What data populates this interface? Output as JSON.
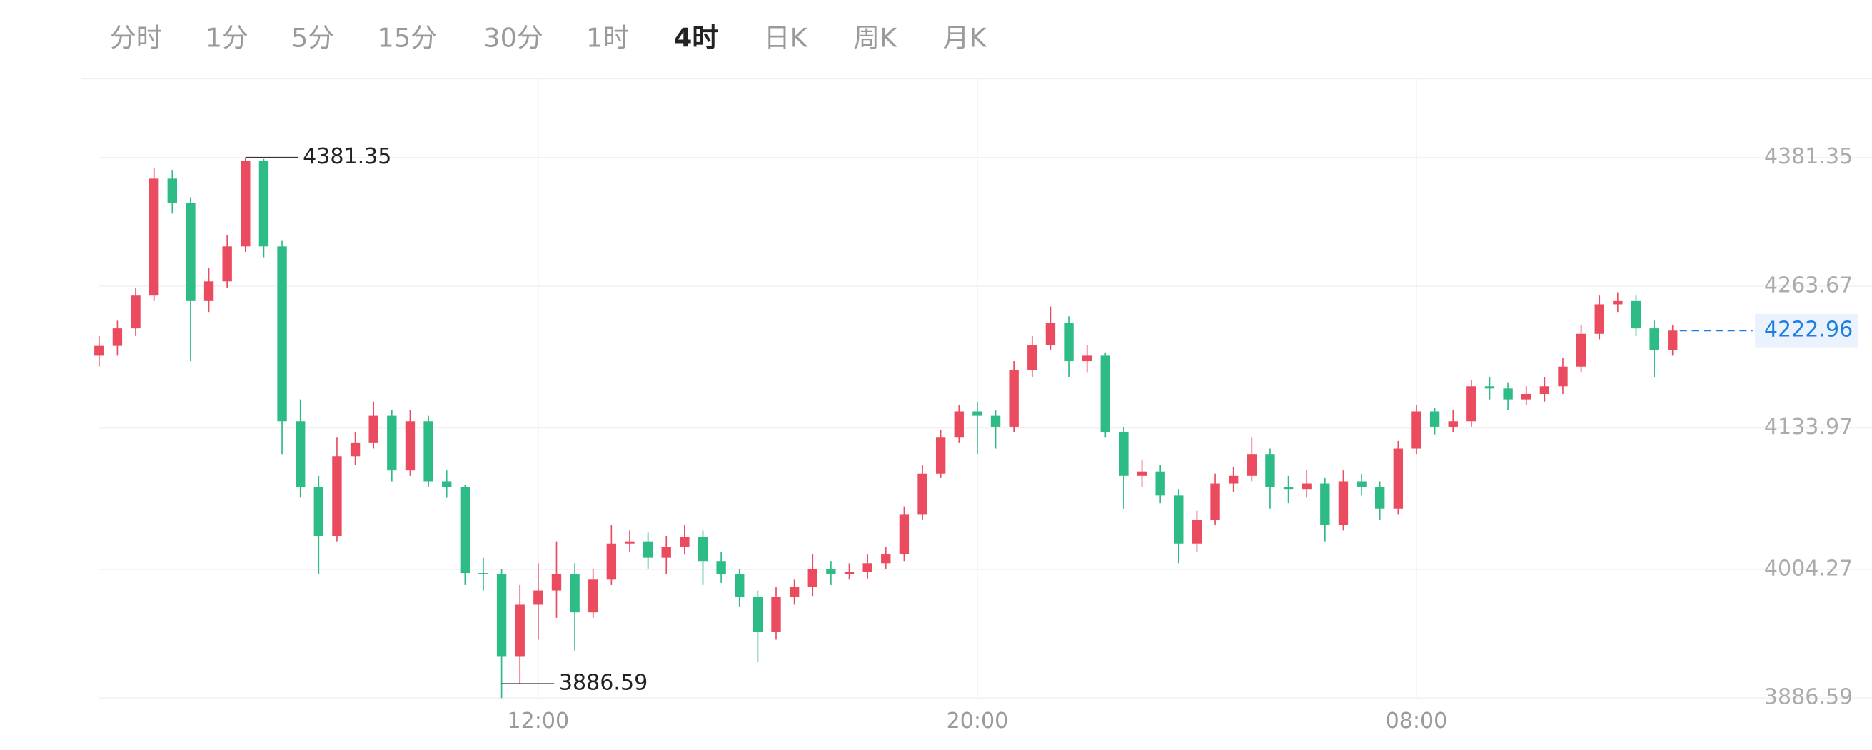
{
  "tabs": [
    {
      "label": "分时",
      "active": false
    },
    {
      "label": "1分",
      "active": false
    },
    {
      "label": "5分",
      "active": false
    },
    {
      "label": "15分",
      "active": false
    },
    {
      "label": "30分",
      "active": false
    },
    {
      "label": "1时",
      "active": false
    },
    {
      "label": "4时",
      "active": true
    },
    {
      "label": "日K",
      "active": false
    },
    {
      "label": "周K",
      "active": false
    },
    {
      "label": "月K",
      "active": false
    }
  ],
  "chart_data": {
    "type": "candlestick",
    "open": [
      4200,
      4209,
      4225,
      4255,
      4362,
      4340,
      4250,
      4268,
      4300,
      4378,
      4300,
      4140,
      4080,
      4035,
      4108,
      4120,
      4145,
      4095,
      4140,
      4085,
      4080,
      4001,
      4000,
      3925,
      3972,
      3985,
      4000,
      3965,
      3995,
      4028,
      4030,
      4015,
      4025,
      4034,
      4012,
      4000,
      3979,
      3947,
      3979,
      3988,
      4005,
      4000,
      4002,
      4010,
      4018,
      4055,
      4092,
      4125,
      4149,
      4145,
      4135,
      4187,
      4210,
      4230,
      4195,
      4200,
      4130,
      4090,
      4094,
      4072,
      4028,
      4050,
      4083,
      4090,
      4110,
      4080,
      4078,
      4083,
      4045,
      4085,
      4080,
      4060,
      4115,
      4149,
      4135,
      4140,
      4172,
      4170,
      4160,
      4165,
      4172,
      4190,
      4220,
      4247,
      4250,
      4225,
      4205
    ],
    "high": [
      4218,
      4232,
      4262,
      4372,
      4370,
      4345,
      4280,
      4310,
      4381.35,
      4380,
      4305,
      4160,
      4090,
      4125,
      4130,
      4158,
      4150,
      4150,
      4145,
      4095,
      4082,
      4015,
      4005,
      3990,
      4010,
      4030,
      4010,
      4005,
      4045,
      4040,
      4038,
      4035,
      4045,
      4040,
      4020,
      4005,
      3985,
      3988,
      3995,
      4018,
      4012,
      4010,
      4018,
      4025,
      4062,
      4100,
      4132,
      4155,
      4158,
      4150,
      4195,
      4218,
      4245,
      4236,
      4210,
      4203,
      4135,
      4105,
      4100,
      4078,
      4058,
      4092,
      4098,
      4125,
      4115,
      4090,
      4095,
      4088,
      4095,
      4092,
      4085,
      4122,
      4155,
      4152,
      4150,
      4178,
      4180,
      4175,
      4172,
      4180,
      4198,
      4228,
      4255,
      4258,
      4255,
      4232,
      4228
    ],
    "low": [
      4190,
      4200,
      4218,
      4250,
      4330,
      4195,
      4240,
      4262,
      4295,
      4290,
      4110,
      4070,
      4000,
      4030,
      4100,
      4115,
      4085,
      4090,
      4080,
      4070,
      3990,
      3985,
      3886.59,
      3900,
      3940,
      3960,
      3930,
      3960,
      3990,
      4020,
      4005,
      4000,
      4018,
      3990,
      3992,
      3970,
      3920,
      3940,
      3972,
      3980,
      3990,
      3995,
      3996,
      4005,
      4012,
      4050,
      4088,
      4120,
      4110,
      4115,
      4130,
      4180,
      4205,
      4180,
      4185,
      4125,
      4060,
      4080,
      4065,
      4010,
      4020,
      4045,
      4075,
      4085,
      4060,
      4065,
      4070,
      4030,
      4040,
      4072,
      4050,
      4055,
      4110,
      4128,
      4130,
      4135,
      4160,
      4150,
      4155,
      4158,
      4165,
      4185,
      4215,
      4240,
      4218,
      4180,
      4200
    ],
    "close": [
      4209,
      4225,
      4255,
      4362,
      4340,
      4250,
      4268,
      4300,
      4378,
      4300,
      4140,
      4080,
      4035,
      4108,
      4120,
      4145,
      4095,
      4140,
      4085,
      4080,
      4001,
      4000,
      3925,
      3972,
      3985,
      4000,
      3965,
      3995,
      4028,
      4030,
      4015,
      4025,
      4034,
      4012,
      4000,
      3979,
      3947,
      3979,
      3988,
      4005,
      4000,
      4002,
      4010,
      4018,
      4055,
      4092,
      4125,
      4149,
      4145,
      4135,
      4187,
      4210,
      4230,
      4195,
      4200,
      4130,
      4090,
      4094,
      4072,
      4028,
      4050,
      4083,
      4090,
      4110,
      4080,
      4078,
      4083,
      4045,
      4085,
      4080,
      4060,
      4115,
      4149,
      4135,
      4140,
      4172,
      4170,
      4160,
      4165,
      4172,
      4190,
      4220,
      4247,
      4250,
      4225,
      4205,
      4222.96
    ],
    "up_color": "#eb4b5f",
    "down_color": "#2dbb86",
    "last_price_color": "#1f7fe0",
    "ylim": [
      3886.59,
      4381.35
    ],
    "yticks": [
      4381.35,
      4263.67,
      4133.97,
      4004.27,
      3886.59
    ],
    "xlim": [
      0,
      86
    ],
    "xticks": [
      {
        "value": 24,
        "label": "12:00"
      },
      {
        "value": 48,
        "label": "20:00"
      },
      {
        "value": 72,
        "label": "08:00"
      }
    ],
    "grid": true
  }
}
